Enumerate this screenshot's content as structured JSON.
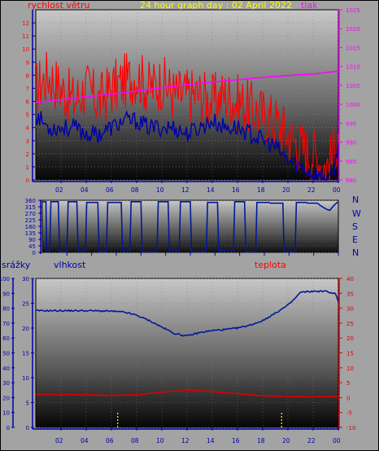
{
  "header": {
    "wind_speed": "rychlost větru",
    "title": "24 hour graph day : 02 April 2022",
    "pressure": "tlak",
    "rain": "srážky",
    "humidity": "vlhkost",
    "temperature": "teplota"
  },
  "direction": {
    "letters": [
      "N",
      "W",
      "S",
      "E",
      "N"
    ]
  },
  "colors": {
    "wind": "#ff0000",
    "gust": "#0000aa",
    "pressure": "#ff00ff",
    "humidity": "#001a99",
    "temperature": "#dd0000",
    "axis_blue": "#0000aa",
    "rain": "#ffff00"
  },
  "x_ticks": [
    "02",
    "04",
    "06",
    "08",
    "10",
    "12",
    "14",
    "16",
    "18",
    "20",
    "22",
    "00"
  ],
  "chart_data": [
    {
      "type": "line",
      "title": "24 hour graph day : 02 April 2022",
      "x_unit": "hour",
      "xlim": [
        0,
        24
      ],
      "left_axis": {
        "label": "rychlost větru",
        "ticks": [
          0,
          1,
          2,
          3,
          4,
          5,
          6,
          7,
          8,
          9,
          10,
          11,
          12
        ],
        "ylim": [
          0,
          13
        ]
      },
      "right_axis": {
        "label": "tlak",
        "ticks": [
          980,
          985,
          990,
          995,
          1000,
          1005,
          1010,
          1015,
          1020,
          1025
        ],
        "ylim": [
          980,
          1025
        ]
      },
      "series": [
        {
          "name": "rychlost větru",
          "axis": "left",
          "x": [
            0,
            1,
            2,
            3,
            4,
            5,
            6,
            7,
            8,
            9,
            10,
            11,
            12,
            13,
            14,
            15,
            16,
            17,
            18,
            19,
            20,
            21,
            22,
            23,
            23.5,
            24
          ],
          "y": [
            7,
            8,
            7,
            6,
            7,
            6,
            7,
            7.5,
            8,
            7,
            7.5,
            6.5,
            6.5,
            6.5,
            6,
            6.5,
            6,
            5.5,
            5,
            4.5,
            3.5,
            2.5,
            2,
            1,
            1.5,
            4
          ]
        },
        {
          "name": "gust",
          "axis": "left",
          "x": [
            0,
            1,
            2,
            3,
            4,
            5,
            6,
            7,
            8,
            9,
            10,
            11,
            12,
            13,
            14,
            15,
            16,
            17,
            18,
            19,
            20,
            21,
            22,
            23,
            23.5,
            24
          ],
          "y": [
            5,
            4,
            4,
            4,
            3.5,
            3.5,
            4,
            4.5,
            4.5,
            4,
            4,
            4,
            3.5,
            4,
            4.5,
            4,
            4,
            3.5,
            3,
            2.5,
            1.5,
            1,
            0.5,
            0.2,
            0,
            2.5
          ]
        },
        {
          "name": "tlak",
          "axis": "right",
          "x": [
            0,
            2,
            4,
            6,
            8,
            10,
            12,
            14,
            16,
            18,
            20,
            22,
            24
          ],
          "y": [
            1000.5,
            1001.2,
            1002.0,
            1002.7,
            1003.5,
            1004.4,
            1005.2,
            1005.9,
            1006.5,
            1007.1,
            1007.6,
            1008.0,
            1008.8
          ]
        }
      ]
    },
    {
      "type": "line",
      "x_unit": "hour",
      "xlim": [
        0,
        24
      ],
      "left_axis": {
        "ticks": [
          0,
          45,
          90,
          135,
          180,
          225,
          270,
          315,
          360
        ],
        "ylim": [
          0,
          360
        ]
      },
      "right_axis": {
        "labels": [
          "N",
          "W",
          "S",
          "E",
          "N"
        ]
      },
      "series": [
        {
          "name": "direction",
          "x": [
            0,
            0.3,
            0.35,
            0.6,
            0.7,
            1.3,
            1.4,
            2.0,
            2.1,
            2.8,
            2.9,
            3.5,
            3.6,
            4.5,
            4.6,
            5.2,
            5.3,
            6.4,
            6.5,
            7.1,
            7.2,
            8.0,
            8.1,
            9.3,
            9.4,
            10.2,
            10.3,
            11.1,
            11.2,
            12.0,
            12.1,
            13.3,
            13.4,
            14.2,
            14.3,
            15.5,
            15.6,
            16.4,
            16.5,
            17.3,
            17.4,
            18.4,
            18.5,
            19.5,
            19.6,
            20.5,
            20.6,
            21.4,
            21.5,
            22.3,
            22.6,
            23.0,
            23.3,
            23.6,
            23.9,
            24
          ],
          "y": [
            350,
            350,
            10,
            10,
            350,
            350,
            5,
            5,
            350,
            350,
            10,
            10,
            345,
            345,
            5,
            5,
            345,
            345,
            10,
            10,
            350,
            350,
            5,
            5,
            350,
            350,
            10,
            10,
            350,
            350,
            5,
            5,
            345,
            345,
            10,
            10,
            350,
            350,
            5,
            5,
            345,
            345,
            340,
            340,
            5,
            5,
            345,
            345,
            340,
            340,
            320,
            300,
            290,
            320,
            345,
            345
          ]
        }
      ]
    },
    {
      "type": "line",
      "x_unit": "hour",
      "xlim": [
        0,
        24
      ],
      "rain_axis": {
        "label": "srážky",
        "ticks": [
          0,
          10,
          20,
          30,
          40,
          50,
          60,
          70,
          80,
          90,
          100
        ],
        "ylim": [
          0,
          100
        ]
      },
      "humidity_axis": {
        "label": "vlhkost",
        "ticks": [
          0,
          5,
          10,
          15,
          20,
          25,
          30
        ],
        "ylim": [
          0,
          30
        ]
      },
      "temperature_axis": {
        "label": "teplota",
        "ticks": [
          -10,
          -5,
          0,
          5,
          10,
          15,
          20,
          25,
          30,
          35,
          40
        ],
        "ylim": [
          -10,
          40
        ]
      },
      "series": [
        {
          "name": "vlhkost",
          "axis": "humidity",
          "x": [
            0,
            2,
            4,
            6,
            7,
            8,
            9,
            10,
            11,
            12,
            13,
            14,
            15,
            16,
            17,
            18,
            19,
            20,
            20.5,
            21,
            22,
            23,
            23.8,
            24
          ],
          "y": [
            23.5,
            23.5,
            23.5,
            23.4,
            23.2,
            22.6,
            21.5,
            20.2,
            18.9,
            18.4,
            19.1,
            19.5,
            19.7,
            20.0,
            20.6,
            21.5,
            23.0,
            24.6,
            25.8,
            27.2,
            27.4,
            27.4,
            26.9,
            25.2
          ]
        },
        {
          "name": "teplota",
          "axis": "temperature",
          "x": [
            0,
            2,
            4,
            6,
            8,
            10,
            12,
            14,
            16,
            18,
            20,
            22,
            24
          ],
          "y": [
            1,
            1,
            1,
            0.7,
            0.9,
            1.8,
            2.5,
            2.0,
            1.3,
            0.6,
            0.4,
            0.3,
            0.3
          ]
        },
        {
          "name": "rain_markers",
          "axis": "rain",
          "type": "bar",
          "x": [
            6.5,
            19.5
          ],
          "y": [
            10,
            10
          ]
        }
      ]
    }
  ]
}
